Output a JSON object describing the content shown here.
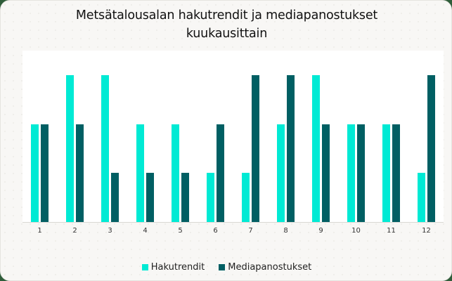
{
  "chart_data": {
    "type": "bar",
    "title": "Metsätalousalan hakutrendit ja mediapanostukset kuukausittain",
    "title_lines": [
      "Metsätalousalan hakutrendit ja mediapanostukset",
      "kuukausittain"
    ],
    "xlabel": "",
    "ylabel": "",
    "categories": [
      "1",
      "2",
      "3",
      "4",
      "5",
      "6",
      "7",
      "8",
      "9",
      "10",
      "11",
      "12"
    ],
    "series": [
      {
        "name": "Hakutrendit",
        "color": "#00ead4",
        "values": [
          2,
          3,
          3,
          2,
          2,
          1,
          1,
          2,
          3,
          2,
          2,
          1
        ]
      },
      {
        "name": "Mediapanostukset",
        "color": "#005f63",
        "values": [
          2,
          2,
          1,
          1,
          1,
          2,
          3,
          3,
          2,
          2,
          2,
          3
        ]
      }
    ],
    "ylim": [
      0,
      3.5
    ],
    "grid": false,
    "y_axis_visible": false,
    "legend_position": "bottom"
  }
}
